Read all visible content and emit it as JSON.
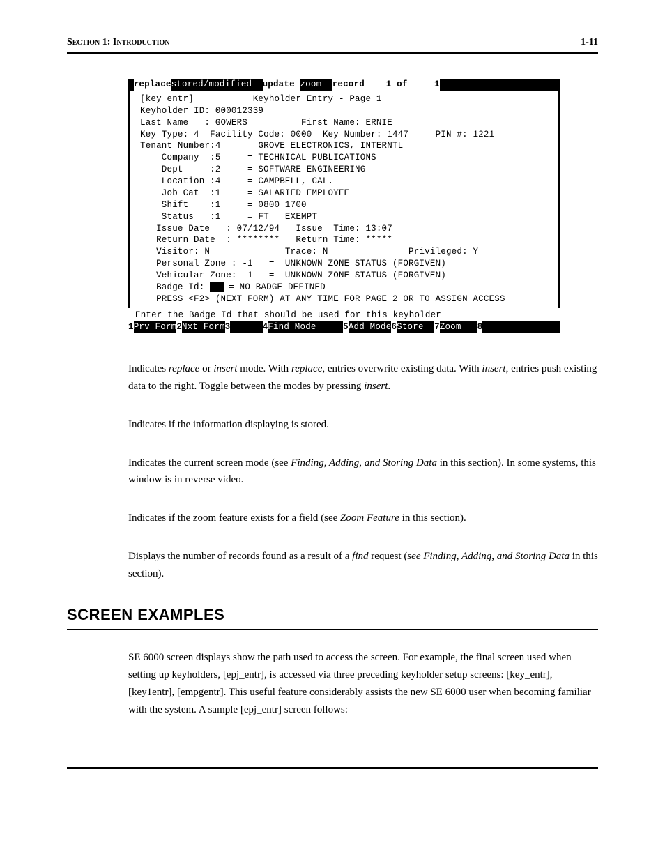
{
  "header": {
    "section": "Section 1: Introduction",
    "page_number": "1-11"
  },
  "terminal": {
    "top_bar": {
      "seg1": "replace",
      "seg2": "stored/modified ",
      "seg3": "update ",
      "seg4": "zoom ",
      "seg5": "record    1 of     1"
    },
    "lines": [
      "[key_entr]           Keyholder Entry - Page 1",
      "Keyholder ID: 000012339",
      "Last Name   : GOWERS          First Name: ERNIE",
      "Key Type: 4  Facility Code: 0000  Key Number: 1447     PIN #: 1221",
      "",
      "Tenant Number:4     = GROVE ELECTRONICS, INTERNTL",
      "    Company  :5     = TECHNICAL PUBLICATIONS",
      "    Dept     :2     = SOFTWARE ENGINEERING",
      "    Location :4     = CAMPBELL, CAL.",
      "    Job Cat  :1     = SALARIED EMPLOYEE",
      "    Shift    :1     = 0800 1700",
      "    Status   :1     = FT   EXEMPT",
      "   Issue Date   : 07/12/94   Issue  Time: 13:07",
      "   Return Date  : ********   Return Time: *****",
      "   Visitor: N              Trace: N               Privileged: Y",
      "   Personal Zone : -1   =  UNKNOWN ZONE STATUS (FORGIVEN)",
      "   Vehicular Zone: -1   =  UNKNOWN ZONE STATUS (FORGIVEN)"
    ],
    "badge_pre": "   Badge Id: ",
    "badge_cursor": "0 ",
    "badge_post": " = NO BADGE DEFINED",
    "press_line": "   PRESS <F2> (NEXT FORM) AT ANY TIME FOR PAGE 2 OR TO ASSIGN ACCESS",
    "prompt": "Enter the Badge Id that should be used for this keyholder",
    "fkeys": {
      "k1": "1",
      "l1": "Prv Form",
      "k2": "2",
      "l2": "Nxt Form",
      "k3": "3",
      "pad3": "      ",
      "k4": "4",
      "l4": "Find Mode",
      "pad4": "     ",
      "k5": "5",
      "l5": "Add Mode",
      "k6": "6",
      "l6": "Store  ",
      "k7": "7",
      "l7": "Zoom   ",
      "k8": "8"
    }
  },
  "paragraphs": {
    "p1a": "Indicates ",
    "p1b": "replace",
    "p1c": " or ",
    "p1d": "insert",
    "p1e": " mode.  With ",
    "p1f": "replace",
    "p1g": ", entries overwrite existing data.  With ",
    "p1h": "insert",
    "p1i": ", entries push existing data to the right.  Toggle between the modes by pressing ",
    "p1j": "insert",
    "p1k": ".",
    "p2": "Indicates if the information displaying is stored.",
    "p3a": "Indicates the current screen mode (see ",
    "p3b": "Finding, Adding, and Storing Data",
    "p3c": " in this section).  In some systems, this window is in reverse video.",
    "p4a": "Indicates if the zoom feature exists for a field (see ",
    "p4b": "Zoom Feature",
    "p4c": "  in this section).",
    "p5a": "Displays the number of records found as a result of a ",
    "p5b": "find",
    "p5c": " request (",
    "p5d": "see Finding, Adding, and Storing Data",
    "p5e": " in this section)."
  },
  "heading": "SCREEN EXAMPLES",
  "examples_para": "SE 6000 screen displays show the path used to access the screen.  For example, the final screen used when setting up keyholders, [epj_entr], is accessed via three preceding keyholder setup screens: [key_entr], [key1entr], [empgentr].  This useful feature considerably assists the new SE 6000 user when becoming familiar with the system.  A sample [epj_entr] screen follows:"
}
